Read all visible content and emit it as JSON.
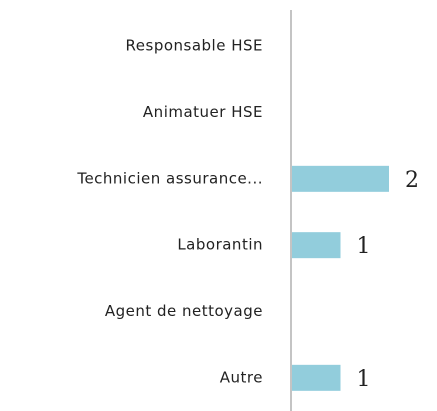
{
  "chart_data": {
    "type": "barh",
    "categories": [
      "Responsable HSE",
      "Animatuer HSE",
      "Technicien assurance...",
      "Laborantin",
      "Agent de nettoyage",
      "Autre"
    ],
    "values": [
      0,
      0,
      2,
      1,
      0,
      1
    ],
    "color": "#92cddc",
    "xlim": [
      0,
      2
    ]
  }
}
